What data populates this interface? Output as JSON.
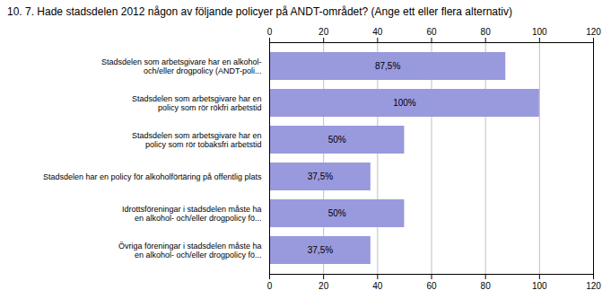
{
  "chart_data": {
    "type": "bar",
    "orientation": "horizontal",
    "title": "10. 7. Hade stadsdelen 2012 någon av följande policyer på ANDT-området? (Ange ett eller flera alternativ)",
    "categories": [
      "Stadsdelen som arbetsgivare har en alkohol-\noch/eller drogpolicy (ANDT-poli...",
      "Stadsdelen som arbetsgivare har en\npolicy som rör rökfri arbetstid",
      "Stadsdelen som arbetsgivare har en\npolicy som rör tobaksfri arbetstid",
      "Stadsdelen har en policy för alkoholförtäring på offentlig plats",
      "Idrottsföreningar i stadsdelen måste ha\nen alkohol- och/eller drogpolicy fö...",
      "Övriga föreningar i stadsdelen måste ha\nen alkohol- och/eller drogpolicy fö..."
    ],
    "values": [
      87.5,
      100,
      50,
      37.5,
      50,
      37.5
    ],
    "value_labels": [
      "87,5%",
      "100%",
      "50%",
      "37,5%",
      "50%",
      "37,5%"
    ],
    "color": "#9999dd",
    "xlim": [
      0,
      120
    ],
    "xticks": [
      0,
      20,
      40,
      60,
      80,
      100,
      120
    ],
    "grid": true,
    "data_labels": true
  }
}
